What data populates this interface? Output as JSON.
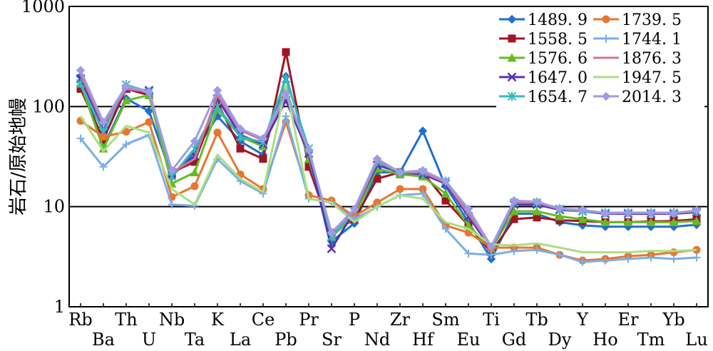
{
  "chart_data": {
    "type": "line",
    "title": "",
    "xlabel": "",
    "ylabel": "岩石/原始地幔",
    "yscale": "log",
    "ylim": [
      1,
      1000
    ],
    "yticks": [
      "1",
      "10",
      "100",
      "1000"
    ],
    "grid": "horizontal lines at 10 and 100",
    "legend_position": "top-right",
    "categories": [
      "Rb",
      "Ba",
      "Th",
      "U",
      "Nb",
      "Ta",
      "K",
      "La",
      "Ce",
      "Pb",
      "Pr",
      "Sr",
      "P",
      "Nd",
      "Zr",
      "Hf",
      "Sm",
      "Eu",
      "Ti",
      "Gd",
      "Tb",
      "Dy",
      "Y",
      "Ho",
      "Er",
      "Tm",
      "Yb",
      "Lu"
    ],
    "series": [
      {
        "name": "1489. 9",
        "color": "#1f6fd0",
        "marker": "diamond",
        "values": [
          200,
          40,
          120,
          90,
          20,
          35,
          80,
          45,
          33,
          200,
          35,
          4.5,
          6.8,
          22,
          22,
          57,
          16,
          7,
          3.0,
          8.5,
          8.5,
          7.0,
          6.5,
          6.3,
          6.3,
          6.3,
          6.3,
          6.6
        ]
      },
      {
        "name": "1558. 5",
        "color": "#a01525",
        "marker": "square",
        "values": [
          150,
          47,
          150,
          130,
          22,
          28,
          110,
          38,
          30,
          350,
          25,
          5.5,
          7.5,
          19,
          22,
          22,
          11.5,
          6.5,
          3.5,
          7.5,
          7.8,
          7.3,
          7.2,
          7.0,
          7.0,
          7.1,
          7.2,
          7.5
        ]
      },
      {
        "name": "1576. 6",
        "color": "#66bb22",
        "marker": "triangle",
        "values": [
          170,
          38,
          115,
          130,
          17,
          22,
          95,
          50,
          40,
          150,
          30,
          5,
          8,
          24,
          21,
          20,
          13.5,
          6.5,
          3.8,
          9,
          9,
          8,
          7.5,
          7.0,
          7.0,
          7.0,
          7.0,
          7.2
        ]
      },
      {
        "name": "1647. 0",
        "color": "#5533bb",
        "marker": "x",
        "values": [
          190,
          58,
          150,
          145,
          21,
          32,
          120,
          52,
          42,
          115,
          34,
          3.8,
          9,
          26,
          22,
          21,
          17,
          8,
          3.8,
          10.5,
          10.5,
          9.3,
          9.0,
          8.5,
          8.5,
          8.5,
          8.5,
          8.8
        ]
      },
      {
        "name": "1654. 7",
        "color": "#33bbbb",
        "marker": "asterisk",
        "values": [
          170,
          55,
          165,
          140,
          20,
          38,
          100,
          50,
          44,
          190,
          38,
          5,
          9,
          28,
          22,
          22,
          18,
          9,
          3.8,
          11,
          11,
          9.5,
          9.0,
          8.7,
          8.7,
          8.7,
          8.7,
          9.0
        ]
      },
      {
        "name": "1739. 5",
        "color": "#e87530",
        "marker": "circle",
        "values": [
          72,
          50,
          56,
          70,
          12.5,
          16,
          55,
          21,
          15,
          70,
          13,
          11.5,
          8,
          11,
          15,
          15,
          6.5,
          5.5,
          3.9,
          3.9,
          3.9,
          3.3,
          2.9,
          3.0,
          3.2,
          3.3,
          3.5,
          3.7
        ]
      },
      {
        "name": "1744. 1",
        "color": "#7aaee6",
        "marker": "plus",
        "values": [
          48,
          25,
          42,
          52,
          10.5,
          10.2,
          30,
          18,
          13.5,
          80,
          12,
          11,
          7.5,
          10,
          13,
          13.5,
          6,
          3.4,
          3.3,
          3.6,
          3.7,
          3.3,
          2.8,
          2.9,
          3.0,
          3.1,
          3.0,
          3.1
        ]
      },
      {
        "name": "1876. 3",
        "color": "#cc7799",
        "marker": "none",
        "values": [
          210,
          65,
          150,
          140,
          22,
          30,
          130,
          58,
          46,
          130,
          36,
          5.5,
          9,
          29,
          22,
          22,
          17.5,
          8.5,
          4.0,
          11,
          11,
          9.5,
          9.2,
          8.7,
          8.7,
          8.7,
          8.7,
          9.0
        ]
      },
      {
        "name": "1947. 5",
        "color": "#aae080",
        "marker": "none",
        "values": [
          80,
          36,
          64,
          55,
          15,
          10.5,
          33,
          19,
          14,
          160,
          12,
          11,
          7,
          10,
          13,
          12,
          7,
          6,
          4.2,
          4.1,
          4.3,
          3.9,
          3.5,
          3.5,
          3.5,
          3.6,
          3.6,
          3.7
        ]
      },
      {
        "name": "2014. 3",
        "color": "#9f9be8",
        "marker": "diamond",
        "values": [
          230,
          70,
          160,
          140,
          23,
          45,
          145,
          60,
          48,
          135,
          37,
          5.5,
          9.5,
          30,
          22,
          23,
          18,
          9.5,
          4.0,
          11.5,
          11.2,
          9.6,
          9.3,
          8.6,
          8.7,
          8.7,
          8.6,
          9.2
        ]
      }
    ]
  }
}
